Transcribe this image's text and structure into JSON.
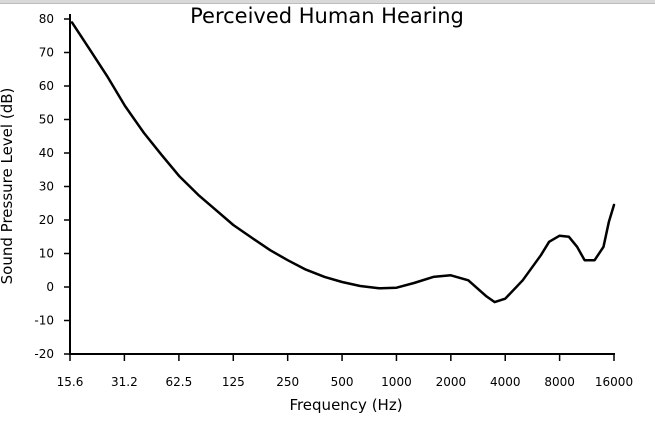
{
  "chart_data": {
    "type": "line",
    "title": "Perceived Human Hearing",
    "xlabel": "Frequency (Hz)",
    "ylabel": "Sound Pressure Level (dB)",
    "x_scale": "log2",
    "x_ticks": [
      15.6,
      31.2,
      62.5,
      125,
      250,
      500,
      1000,
      2000,
      4000,
      8000,
      16000
    ],
    "x_tick_labels": [
      "15.6",
      "31.2",
      "62.5",
      "125",
      "250",
      "500",
      "1000",
      "2000",
      "4000",
      "8000",
      "16000"
    ],
    "xlim": [
      15.6,
      16000
    ],
    "y_ticks": [
      -20,
      -10,
      0,
      10,
      20,
      30,
      40,
      50,
      60,
      70,
      80
    ],
    "y_tick_labels": [
      "-20",
      "-10",
      "0",
      "10",
      "20",
      "30",
      "40",
      "50",
      "60",
      "70",
      "80"
    ],
    "ylim": [
      -20,
      80
    ],
    "grid": false,
    "series": [
      {
        "color": "#000000",
        "x": [
          16,
          20,
          25,
          31.5,
          40,
          50,
          63,
          80,
          100,
          125,
          160,
          200,
          250,
          315,
          400,
          500,
          630,
          800,
          1000,
          1250,
          1600,
          2000,
          2500,
          3150,
          3500,
          4000,
          5000,
          6300,
          7000,
          8000,
          9000,
          10000,
          11000,
          12500,
          14000,
          15000,
          16000
        ],
        "y": [
          79,
          71,
          63,
          54,
          46,
          39.5,
          33,
          27.5,
          23,
          18.5,
          14.5,
          11,
          8,
          5.2,
          3,
          1.5,
          0.3,
          -0.4,
          -0.2,
          1.2,
          3,
          3.5,
          2,
          -2.8,
          -4.5,
          -3.5,
          2,
          9.5,
          13.5,
          15.3,
          15,
          12,
          8,
          8,
          12,
          19.5,
          24.5
        ]
      }
    ]
  }
}
